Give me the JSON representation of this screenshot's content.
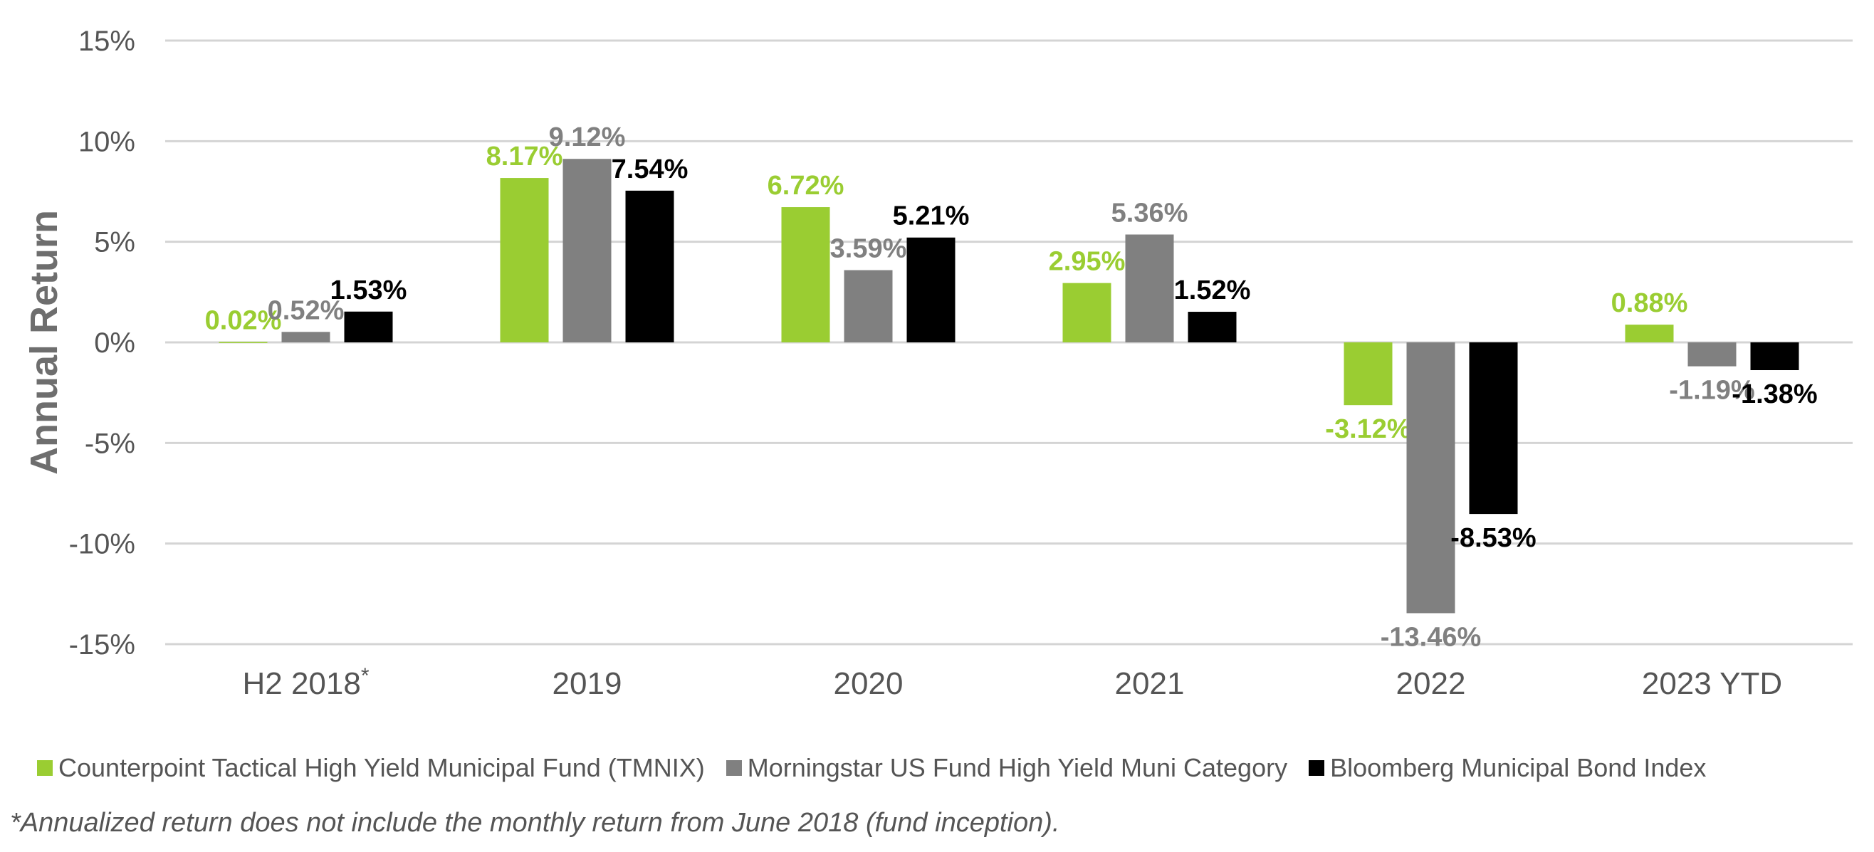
{
  "chart_data": {
    "type": "bar",
    "categories": [
      "H2 2018",
      "2019",
      "2020",
      "2021",
      "2022",
      "2023 YTD"
    ],
    "category_superscripts": [
      "*",
      "",
      "",
      "",
      "",
      ""
    ],
    "series": [
      {
        "name": "Counterpoint Tactical High Yield Municipal Fund (TMNIX)",
        "color": "#9acd32",
        "values": [
          0.02,
          8.17,
          6.72,
          2.95,
          -3.12,
          0.88
        ],
        "labels": [
          "0.02%",
          "8.17%",
          "6.72%",
          "2.95%",
          "-3.12%",
          "0.88%"
        ]
      },
      {
        "name": "Morningstar US Fund High Yield Muni Category",
        "color": "#808080",
        "values": [
          0.52,
          9.12,
          3.59,
          5.36,
          -13.46,
          -1.19
        ],
        "labels": [
          "0.52%",
          "9.12%",
          "3.59%",
          "5.36%",
          "-13.46%",
          "-1.19%"
        ]
      },
      {
        "name": "Bloomberg Municipal Bond Index",
        "color": "#000000",
        "values": [
          1.53,
          7.54,
          5.21,
          1.52,
          -8.53,
          -1.38
        ],
        "labels": [
          "1.53%",
          "7.54%",
          "5.21%",
          "1.52%",
          "-8.53%",
          "-1.38%"
        ]
      }
    ],
    "ylabel": "Annual Return",
    "ylim": [
      -15,
      15
    ],
    "yticks": [
      15,
      10,
      5,
      0,
      -5,
      -10,
      -15
    ],
    "ytick_labels": [
      "15%",
      "10%",
      "5%",
      "0%",
      "-5%",
      "-10%",
      "-15%"
    ],
    "grid": true,
    "legend_position": "bottom"
  },
  "footnote": "*Annualized return does not include the monthly return from June 2018 (fund inception)."
}
